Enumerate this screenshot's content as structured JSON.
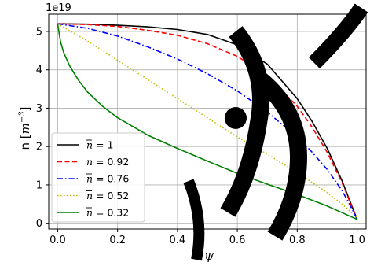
{
  "chart_data": {
    "type": "line",
    "xlabel": "ψ",
    "ylabel": "n [m⁻³]",
    "ylabel_prefix": "n [",
    "ylabel_base": "m",
    "ylabel_exp": "−3",
    "ylabel_suffix": "]",
    "offset_text": "1e19",
    "xlim": [
      -0.03,
      1.03
    ],
    "ylim": [
      -0.15,
      5.45
    ],
    "xticks": [
      0.0,
      0.2,
      0.4,
      0.6,
      0.8,
      1.0
    ],
    "xtick_labels": [
      "0.0",
      "0.2",
      "0.4",
      "0.6",
      "0.8",
      "1.0"
    ],
    "yticks": [
      0,
      1,
      2,
      3,
      4,
      5
    ],
    "ytick_labels": [
      "0",
      "1",
      "2",
      "3",
      "4",
      "5"
    ],
    "grid": true,
    "legend_position": "lower-left",
    "series": [
      {
        "name": "n̅ = 1",
        "legend_value": "1",
        "color": "#000000",
        "style": "solid",
        "x": [
          0,
          0.1,
          0.2,
          0.3,
          0.4,
          0.5,
          0.6,
          0.7,
          0.8,
          0.85,
          0.9,
          0.95,
          0.98,
          1.0
        ],
        "y": [
          5.2,
          5.19,
          5.16,
          5.12,
          5.05,
          4.92,
          4.65,
          4.15,
          3.25,
          2.65,
          1.95,
          1.1,
          0.5,
          0.1
        ]
      },
      {
        "name": "n̅ = 0.92",
        "legend_value": "0.92",
        "color": "#ff0000",
        "style": "dashed",
        "x": [
          0,
          0.1,
          0.2,
          0.3,
          0.4,
          0.5,
          0.6,
          0.7,
          0.8,
          0.85,
          0.9,
          0.95,
          0.98,
          1.0
        ],
        "y": [
          5.2,
          5.18,
          5.13,
          5.03,
          4.9,
          4.68,
          4.35,
          3.85,
          3.05,
          2.5,
          1.85,
          1.05,
          0.48,
          0.1
        ]
      },
      {
        "name": "n̅ = 0.76",
        "legend_value": "0.76",
        "color": "#0000ff",
        "style": "dashdot",
        "x": [
          0,
          0.1,
          0.2,
          0.3,
          0.4,
          0.5,
          0.6,
          0.7,
          0.8,
          0.85,
          0.9,
          0.95,
          0.98,
          1.0
        ],
        "y": [
          5.2,
          5.08,
          4.88,
          4.6,
          4.28,
          3.9,
          3.45,
          2.9,
          2.25,
          1.85,
          1.4,
          0.85,
          0.42,
          0.1
        ]
      },
      {
        "name": "n̅ = 0.52",
        "legend_value": "0.52",
        "color": "#bfbf00",
        "style": "dotted",
        "x": [
          0,
          0.1,
          0.2,
          0.3,
          0.4,
          0.5,
          0.6,
          0.7,
          0.8,
          0.9,
          0.95,
          1.0
        ],
        "y": [
          5.2,
          4.75,
          4.25,
          3.75,
          3.25,
          2.75,
          2.25,
          1.8,
          1.32,
          0.8,
          0.5,
          0.15
        ]
      },
      {
        "name": "n̅ = 0.32",
        "legend_value": "0.32",
        "color": "#008000",
        "style": "solid",
        "x": [
          0,
          0.005,
          0.01,
          0.02,
          0.04,
          0.07,
          0.1,
          0.15,
          0.2,
          0.3,
          0.4,
          0.5,
          0.6,
          0.7,
          0.8,
          0.9,
          1.0
        ],
        "y": [
          5.2,
          4.95,
          4.72,
          4.45,
          4.1,
          3.72,
          3.42,
          3.05,
          2.75,
          2.3,
          1.95,
          1.62,
          1.3,
          1.02,
          0.75,
          0.45,
          0.1
        ]
      }
    ]
  }
}
